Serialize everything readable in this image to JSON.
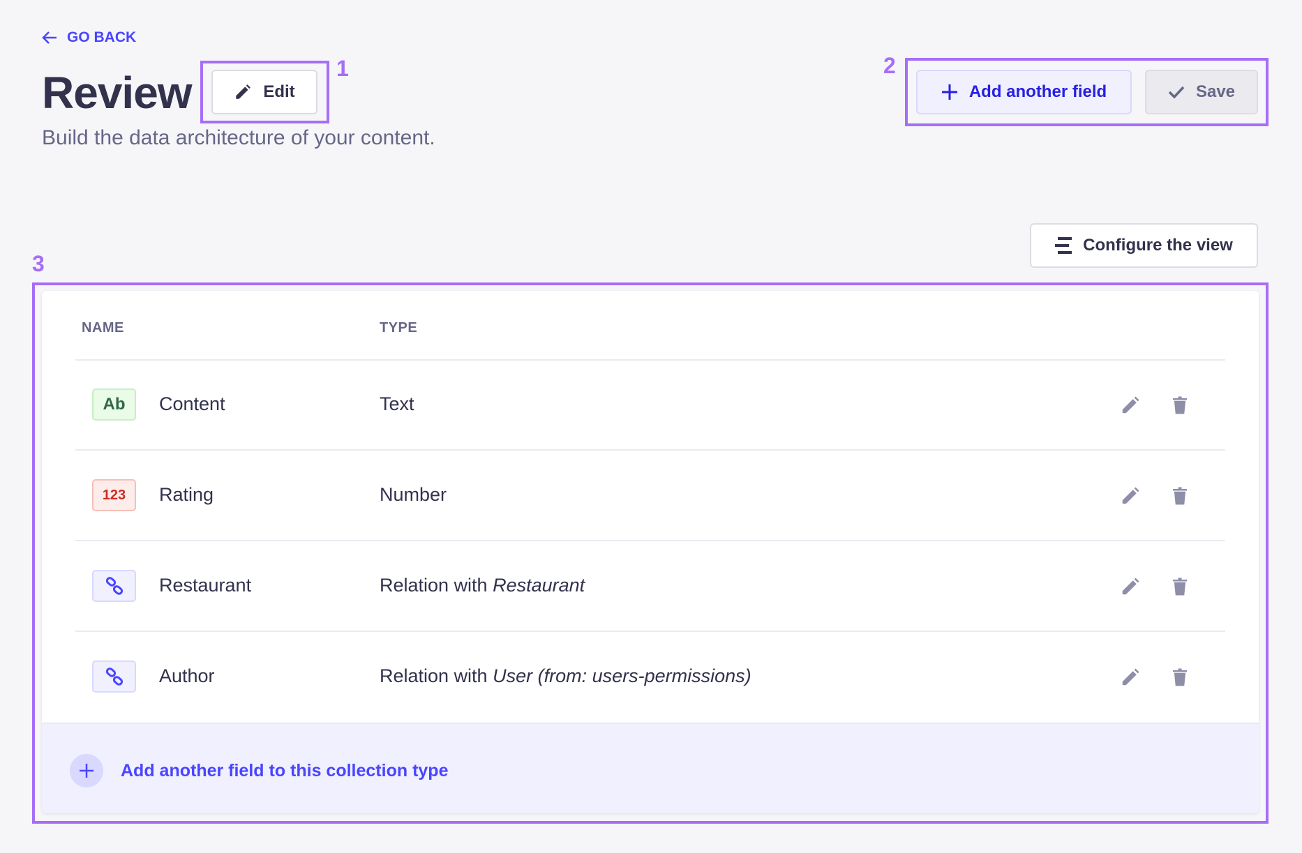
{
  "header": {
    "go_back": "GO BACK",
    "title": "Review",
    "subtitle": "Build the data architecture of your content.",
    "edit_label": "Edit",
    "add_field_label": "Add another field",
    "save_label": "Save",
    "configure_label": "Configure the view"
  },
  "annotations": [
    "1",
    "2",
    "3"
  ],
  "table": {
    "columns": [
      "NAME",
      "TYPE"
    ],
    "rows": [
      {
        "badge": "Ab",
        "badge_kind": "text",
        "name": "Content",
        "type_prefix": "Text",
        "type_target": ""
      },
      {
        "badge": "123",
        "badge_kind": "number",
        "name": "Rating",
        "type_prefix": "Number",
        "type_target": ""
      },
      {
        "badge": "",
        "badge_kind": "relation",
        "name": "Restaurant",
        "type_prefix": "Relation with ",
        "type_target": "Restaurant"
      },
      {
        "badge": "",
        "badge_kind": "relation",
        "name": "Author",
        "type_prefix": "Relation with ",
        "type_target": "User (from: users-permissions)"
      }
    ],
    "footer_label": "Add another field to this collection type"
  },
  "colors": {
    "primary": "#4945ff",
    "annotation": "#a66ef7",
    "text": "#32324d",
    "muted": "#666687",
    "background": "#f6f6f9"
  }
}
